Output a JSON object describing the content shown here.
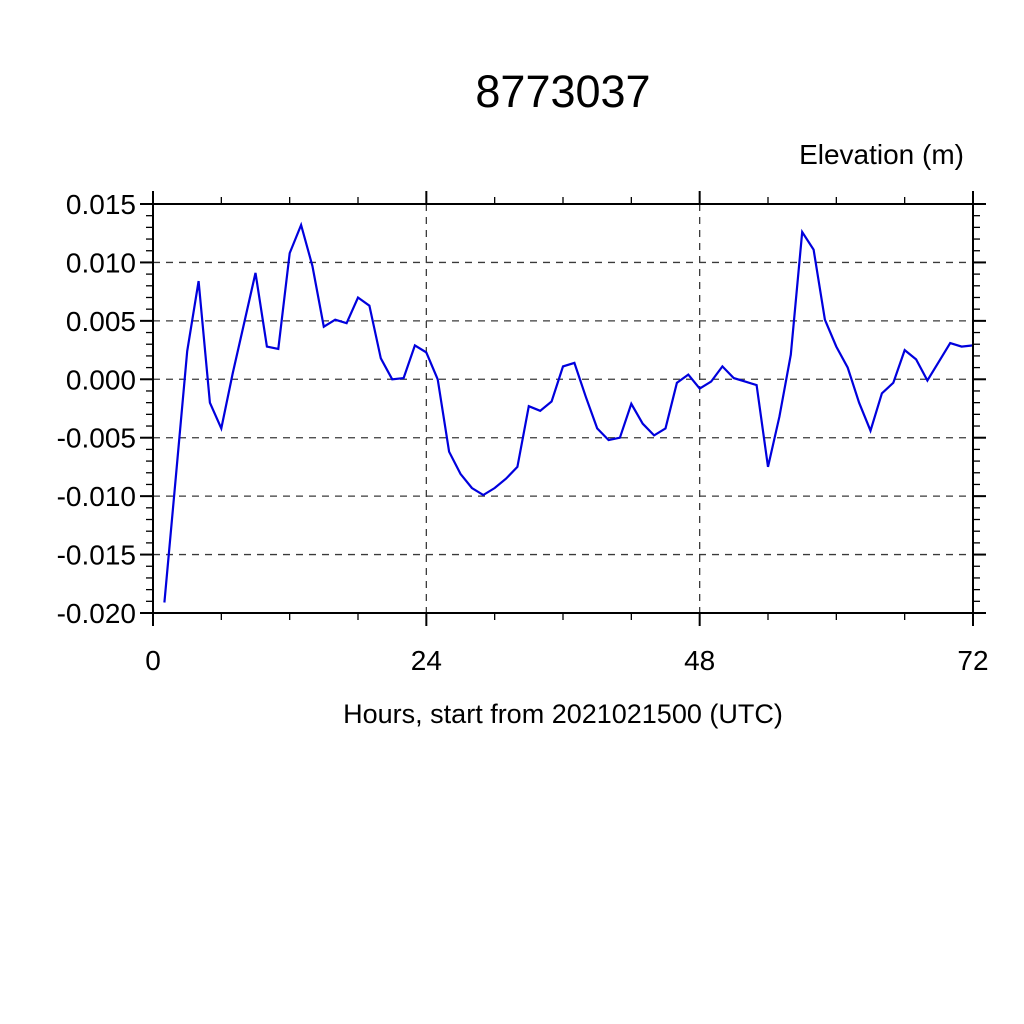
{
  "chart_data": {
    "type": "line",
    "title": "8773037",
    "right_label": "Elevation (m)",
    "xlabel": "Hours, start from 2021021500 (UTC)",
    "ylabel": "",
    "line_color": "#0000dd",
    "grid": "dashed-major",
    "legend": "none",
    "xlim": [
      0,
      72
    ],
    "ylim": [
      -0.02,
      0.015
    ],
    "xticks": [
      0,
      24,
      48,
      72
    ],
    "xtick_labels": [
      "0",
      "24",
      "48",
      "72"
    ],
    "xminor_step": 6,
    "yticks": [
      0.015,
      0.01,
      0.005,
      0.0,
      -0.005,
      -0.01,
      -0.015,
      -0.02
    ],
    "ytick_labels": [
      "0.015",
      "0.010",
      "0.005",
      "0.000",
      "-0.005",
      "-0.010",
      "-0.015",
      "-0.020"
    ],
    "yminor_step": 0.001,
    "x": [
      1,
      2,
      3,
      4,
      5,
      6,
      7,
      8,
      9,
      10,
      11,
      12,
      13,
      14,
      15,
      16,
      17,
      18,
      19,
      20,
      21,
      22,
      23,
      24,
      25,
      26,
      27,
      28,
      29,
      30,
      31,
      32,
      33,
      34,
      35,
      36,
      37,
      38,
      39,
      40,
      41,
      42,
      43,
      44,
      45,
      46,
      47,
      48,
      49,
      50,
      51,
      52,
      53,
      54,
      55,
      56,
      57,
      58,
      59,
      60,
      61,
      62,
      63,
      64,
      65,
      66,
      67,
      68,
      69,
      70,
      71,
      72
    ],
    "values": [
      -0.0191,
      -0.0084,
      0.0024,
      0.0084,
      -0.002,
      -0.0042,
      0.0005,
      0.0048,
      0.0091,
      0.0028,
      0.0026,
      0.0108,
      0.0132,
      0.0097,
      0.0045,
      0.0051,
      0.0048,
      0.007,
      0.0063,
      0.0018,
      0.0,
      0.0001,
      0.0029,
      0.0023,
      0.0,
      -0.0062,
      -0.0081,
      -0.0093,
      -0.0099,
      -0.0093,
      -0.0085,
      -0.0075,
      -0.0023,
      -0.0027,
      -0.0019,
      0.0011,
      0.0014,
      -0.0015,
      -0.0042,
      -0.0052,
      -0.005,
      -0.0021,
      -0.0038,
      -0.0048,
      -0.0042,
      -0.0003,
      0.0004,
      -0.0008,
      -0.0002,
      0.0011,
      0.0001,
      -0.0002,
      -0.0005,
      -0.0075,
      -0.0032,
      0.0021,
      0.0126,
      0.0111,
      0.0051,
      0.0028,
      0.001,
      -0.002,
      -0.0044,
      -0.0012,
      -0.0003,
      0.0025,
      0.0017,
      -0.0001,
      0.0015,
      0.0031,
      0.0028,
      0.0029
    ]
  },
  "colors": {
    "line": "#0000dd",
    "axis": "#000000",
    "grid": "#3a3a3a",
    "background": "#ffffff"
  }
}
